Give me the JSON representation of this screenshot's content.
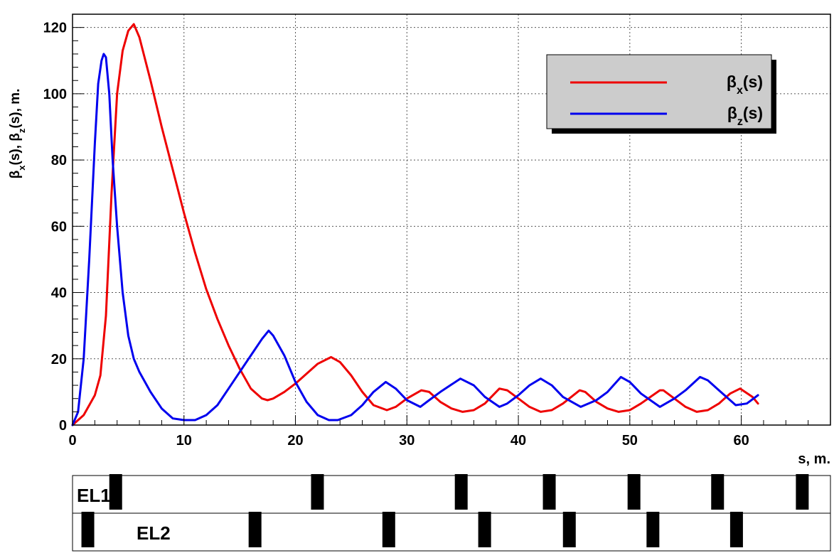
{
  "chart_data": {
    "type": "line",
    "title": "",
    "xlabel": "s, m.",
    "ylabel": {
      "parts": [
        {
          "text": "β",
          "sub": false
        },
        {
          "text": "x",
          "sub": true
        },
        {
          "text": "(s), ",
          "sub": false
        },
        {
          "text": "β",
          "sub": false
        },
        {
          "text": "z",
          "sub": true
        },
        {
          "text": "(s), m.",
          "sub": false
        }
      ]
    },
    "xlim": [
      0,
      68
    ],
    "ylim": [
      0,
      124
    ],
    "x_ticks": [
      0,
      10,
      20,
      30,
      40,
      50,
      60
    ],
    "x_tick_labels": [
      "0",
      "10",
      "20",
      "30",
      "40",
      "50",
      "60"
    ],
    "y_ticks": [
      0,
      20,
      40,
      60,
      80,
      100,
      120
    ],
    "y_tick_labels": [
      "0",
      "20",
      "40",
      "60",
      "80",
      "100",
      "120"
    ],
    "grid": true,
    "legend_position": "top-right",
    "series": [
      {
        "name": "β_x(s)",
        "legend_parts": [
          {
            "text": "β",
            "sub": false
          },
          {
            "text": "x",
            "sub": true
          },
          {
            "text": "(s)",
            "sub": false
          }
        ],
        "color": "#ee0000",
        "x": [
          0,
          1,
          2,
          2.5,
          3,
          3.5,
          4,
          4.5,
          5,
          5.5,
          6,
          7,
          8,
          9,
          10,
          11,
          12,
          13,
          14,
          15,
          16,
          17,
          17.5,
          18,
          19,
          20,
          21,
          22,
          23.2,
          24,
          25,
          26,
          27,
          28.2,
          29,
          30,
          31.3,
          32,
          33,
          34,
          35,
          36,
          37,
          38.3,
          39,
          40,
          41,
          42,
          43,
          44,
          45.5,
          46,
          47,
          48,
          49,
          50,
          51,
          52.7,
          53,
          54,
          55,
          56,
          57,
          58,
          59,
          59.9,
          61,
          61.5
        ],
        "y": [
          0,
          3,
          9,
          15,
          33,
          70,
          100,
          113,
          119,
          121,
          117,
          104,
          90,
          77,
          64,
          52,
          41,
          32,
          24,
          17,
          11,
          8,
          7.5,
          8,
          10,
          12.5,
          15.5,
          18.5,
          20.5,
          19,
          15,
          10,
          6,
          4.5,
          5.5,
          8,
          10.5,
          10,
          7,
          5,
          4,
          4.5,
          6.5,
          11,
          10.5,
          8,
          5.5,
          4,
          4.5,
          6.5,
          10.5,
          10,
          7,
          5,
          4,
          4.5,
          6.5,
          10.5,
          10.5,
          8,
          5.5,
          4,
          4.5,
          6.5,
          9.5,
          11,
          8.5,
          6.5
        ]
      },
      {
        "name": "β_z(s)",
        "legend_parts": [
          {
            "text": "β",
            "sub": false
          },
          {
            "text": "z",
            "sub": true
          },
          {
            "text": "(s)",
            "sub": false
          }
        ],
        "color": "#0000ee",
        "x": [
          0,
          0.5,
          1,
          1.5,
          2,
          2.3,
          2.6,
          2.8,
          3,
          3.3,
          3.6,
          4,
          4.5,
          5,
          5.5,
          6,
          7,
          8,
          9,
          10,
          11,
          12,
          13,
          14,
          15,
          16,
          17,
          17.6,
          18,
          19,
          20,
          21,
          22,
          23,
          23.8,
          25,
          26,
          27,
          28.1,
          29,
          30,
          31.2,
          32,
          33,
          34.8,
          36,
          37,
          38.3,
          39,
          40,
          41,
          42,
          43,
          44,
          45.6,
          47,
          48,
          49.2,
          50,
          51,
          52.7,
          54,
          55,
          56.3,
          57,
          58,
          59.5,
          60.5,
          61.5
        ],
        "y": [
          0,
          4,
          20,
          50,
          85,
          103,
          110,
          112,
          111,
          100,
          80,
          60,
          40,
          27,
          20,
          16,
          10,
          5,
          2,
          1.5,
          1.5,
          3,
          6,
          11,
          16,
          21,
          26,
          28.5,
          27,
          21,
          13,
          7,
          3,
          1.5,
          1.5,
          3,
          6,
          10,
          13,
          11,
          7.5,
          5.5,
          7.5,
          10,
          14,
          12,
          8.5,
          5.5,
          6.5,
          9,
          12,
          14,
          12,
          8.5,
          5.5,
          7.5,
          10,
          14.5,
          13,
          9.5,
          5.5,
          8,
          10.5,
          14.5,
          13.5,
          10.5,
          6,
          6.5,
          9
        ]
      }
    ]
  },
  "lattice": {
    "rows": [
      {
        "label": "EL1",
        "elements": [
          3.3,
          21.4,
          34.3,
          42.2,
          49.8,
          57.3,
          64.9
        ]
      },
      {
        "label": "EL2",
        "elements": [
          0.8,
          15.8,
          27.8,
          36.4,
          44,
          51.5,
          59
        ]
      }
    ]
  }
}
